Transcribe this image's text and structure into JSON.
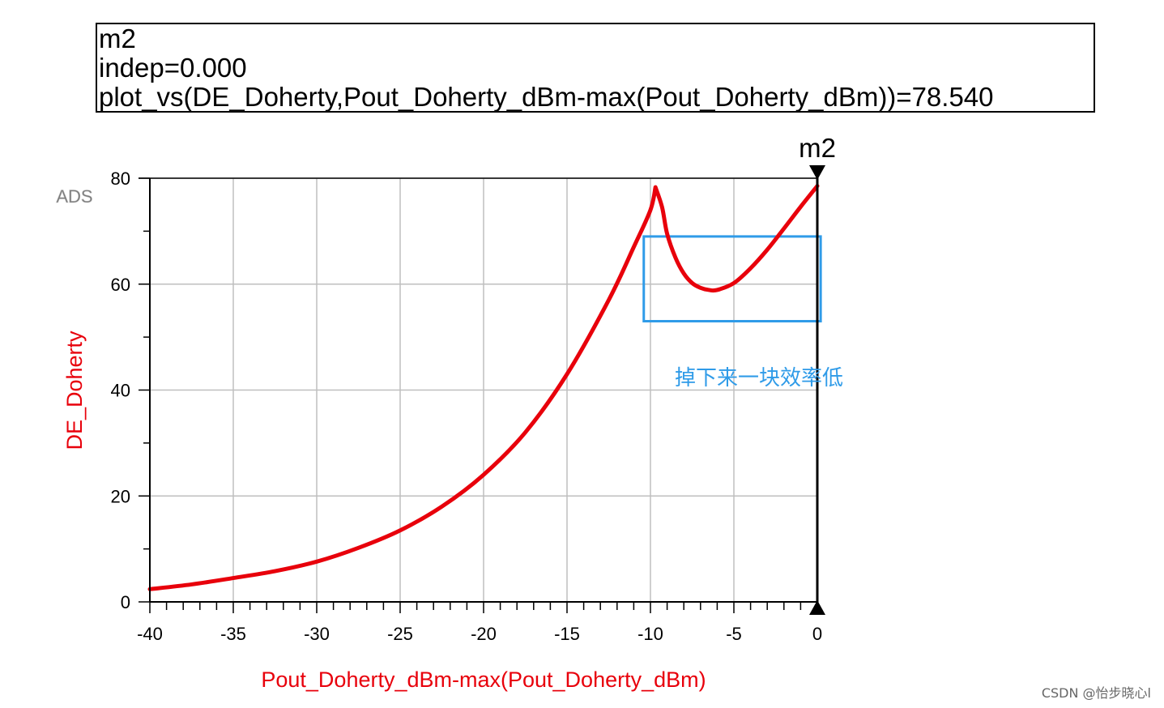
{
  "marker_box": {
    "name": "m2",
    "indep": "indep=0.000",
    "expr": "plot_vs(DE_Doherty,Pout_Doherty_dBm-max(Pout_Doherty_dBm))=78.540"
  },
  "ads_label": "ADS",
  "annotation": "掉下来一块效率低",
  "watermark": "CSDN @怡步晓心l",
  "colors": {
    "curve": "#e8000b",
    "annotation": "#1e90ff",
    "axis": "#000000",
    "grid": "#bfbfbf"
  },
  "chart_data": {
    "type": "line",
    "xlabel": "Pout_Doherty_dBm-max(Pout_Doherty_dBm)",
    "ylabel": "DE_Doherty",
    "xlim": [
      -40,
      0
    ],
    "ylim": [
      0,
      80
    ],
    "x_ticks": [
      "-40",
      "-35",
      "-30",
      "-25",
      "-20",
      "-15",
      "-10",
      "-5",
      "0"
    ],
    "y_ticks": [
      "0",
      "20",
      "40",
      "60",
      "80"
    ],
    "grid": true,
    "marker": {
      "label": "m2",
      "x": 0,
      "y": 78.54
    },
    "highlight_region": {
      "x": [
        -10.4,
        0.2
      ],
      "y": [
        53,
        69
      ]
    },
    "series": [
      {
        "x": [
          -40,
          -37.5,
          -35,
          -32.5,
          -30,
          -27.5,
          -25,
          -22.5,
          -20,
          -17.5,
          -15,
          -12.5,
          -11,
          -10,
          -9.7,
          -9.3,
          -9,
          -8.5,
          -8,
          -7.5,
          -7,
          -6.5,
          -6,
          -5,
          -4,
          -3,
          -2,
          -1,
          0
        ],
        "values": [
          2.4,
          3.3,
          4.5,
          5.8,
          7.6,
          10.2,
          13.5,
          18.0,
          24.0,
          32.0,
          43.0,
          57.0,
          67.0,
          74.0,
          78.3,
          74.5,
          69.5,
          65.0,
          62.0,
          60.2,
          59.3,
          58.9,
          58.9,
          60.2,
          63.0,
          66.5,
          70.5,
          74.6,
          78.54
        ]
      }
    ]
  }
}
